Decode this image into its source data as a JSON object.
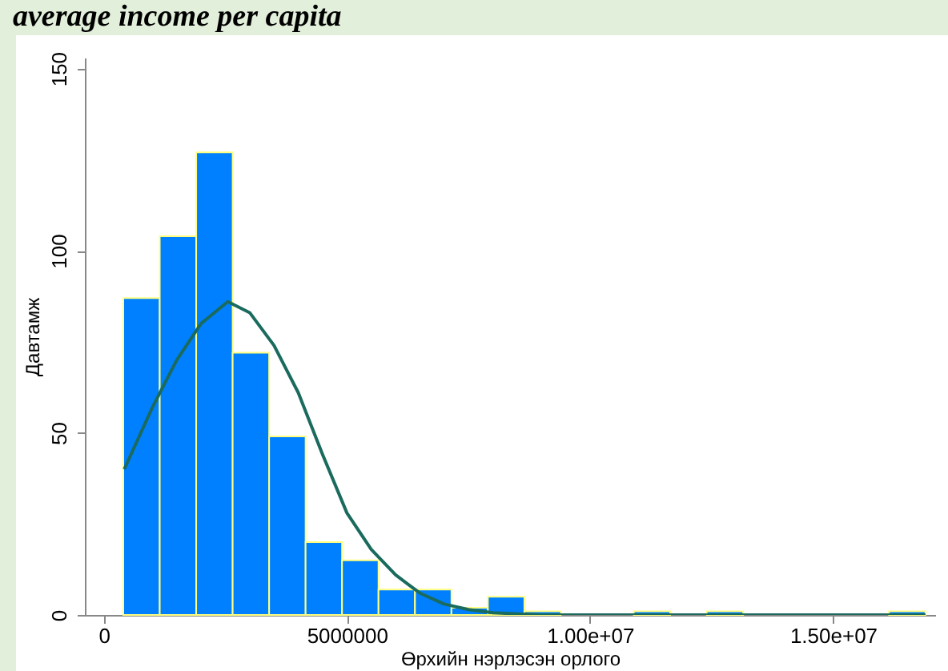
{
  "chart_data": {
    "type": "histogram",
    "title": "average income per capita",
    "xlabel": "Өрхийн нэрлэсэн орлого",
    "ylabel": "Давтамж",
    "bins": [
      400000,
      1150000,
      1900000,
      2650000,
      3400000,
      4150000,
      4900000,
      5650000,
      6400000,
      7150000,
      7900000,
      8650000,
      9400000,
      10150000,
      10900000,
      11650000,
      12400000,
      13150000,
      13900000,
      14650000,
      15400000,
      16150000,
      16900000
    ],
    "series": [
      {
        "color": "#0080ff",
        "values": [
          87,
          104,
          127,
          72,
          49,
          20,
          15,
          7,
          7,
          2,
          5,
          1,
          0,
          0,
          1,
          0,
          1,
          0,
          0,
          0,
          0,
          1
        ]
      },
      {
        "type": "line",
        "color": "#1a6b5e",
        "x": [
          420000,
          1000000,
          1500000,
          2000000,
          2550000,
          3000000,
          3500000,
          4000000,
          4500000,
          5000000,
          5500000,
          6000000,
          6500000,
          7000000,
          7500000,
          8000000,
          9000000,
          10000000,
          12000000,
          14000000,
          16900000
        ],
        "values": [
          40,
          57,
          70,
          80,
          86,
          83,
          74,
          61,
          44,
          28,
          18,
          11,
          6,
          3,
          1.5,
          0.6,
          0,
          0,
          0,
          0,
          0
        ]
      }
    ],
    "xlim": [
      -390000,
      17100000
    ],
    "xticks": [
      0,
      5000000,
      {
        "value": 10000000,
        "label": "1.00e+07"
      },
      {
        "value": 15000000,
        "label": "1.50e+07"
      }
    ],
    "ylim": [
      0,
      153
    ],
    "yticks": [
      0,
      50,
      100,
      150
    ],
    "grid": false
  }
}
